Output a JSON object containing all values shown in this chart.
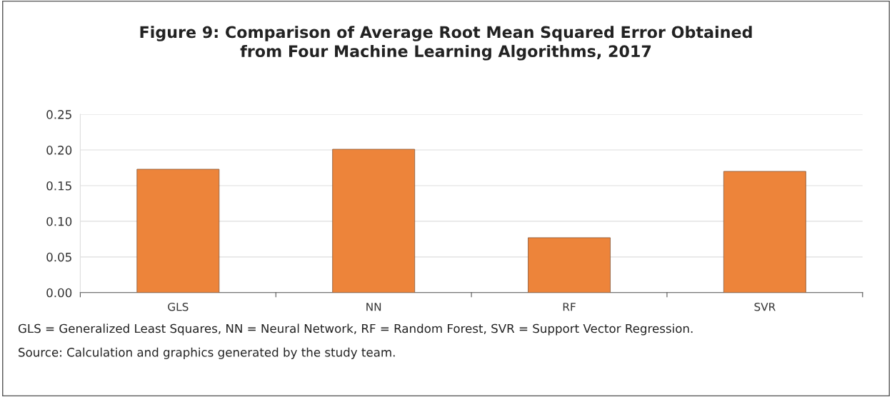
{
  "chart_data": {
    "type": "bar",
    "title": "Figure 9: Comparison of Average Root Mean Squared Error Obtained\nfrom Four Machine Learning Algorithms, 2017",
    "categories": [
      "GLS",
      "NN",
      "RF",
      "SVR"
    ],
    "values": [
      0.173,
      0.201,
      0.077,
      0.17
    ],
    "color": "#ed843a",
    "ylim": [
      0,
      0.25
    ],
    "yticks": [
      {
        "value": 0,
        "label": "0.00"
      },
      {
        "value": 0.05,
        "label": "0.05"
      },
      {
        "value": 0.1,
        "label": "0.10"
      },
      {
        "value": 0.15,
        "label": "0.15"
      },
      {
        "value": 0.2,
        "label": "0.20"
      },
      {
        "value": 0.25,
        "label": "0.25"
      }
    ],
    "grid": "y",
    "annotations": [
      "GLS = Generalized Least Squares, NN = Neural Network, RF = Random Forest, SVR = Support Vector Regression.",
      "Source: Calculation and graphics generated by the study team."
    ]
  }
}
